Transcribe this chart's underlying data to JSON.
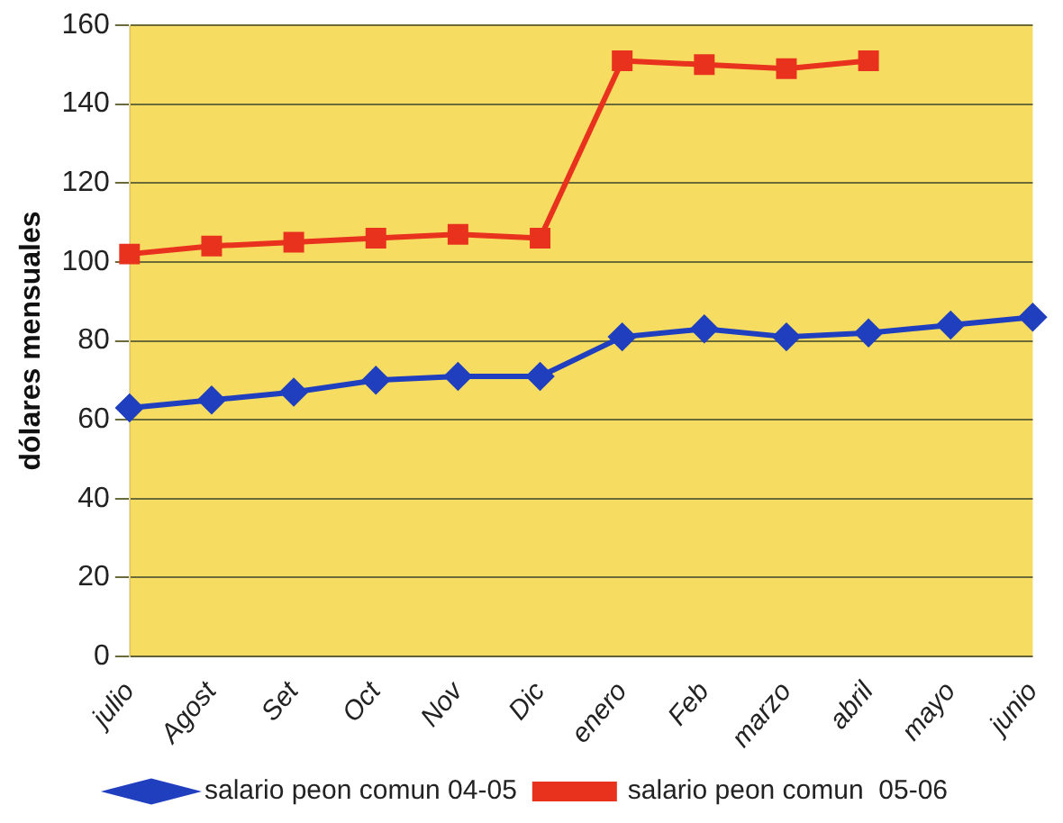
{
  "chart_data": {
    "type": "line",
    "ylabel": "dólares mensuales",
    "categories": [
      "julio",
      "Agost",
      "Set",
      "Oct",
      "Nov",
      "Dic",
      "enero",
      "Feb",
      "marzo",
      "abril",
      "mayo",
      "junio"
    ],
    "series": [
      {
        "name": "salario peon comun 04-05",
        "color": "#1f3fbf",
        "marker": "diamond",
        "values": [
          63,
          65,
          67,
          70,
          71,
          71,
          81,
          83,
          81,
          82,
          84,
          86
        ]
      },
      {
        "name": "salario peon comun  05-06",
        "color": "#e8321e",
        "marker": "square",
        "values": [
          102,
          104,
          105,
          106,
          107,
          106,
          151,
          150,
          149,
          151,
          null,
          null
        ]
      }
    ],
    "ylim": [
      0,
      160
    ],
    "yticks": [
      0,
      20,
      40,
      60,
      80,
      100,
      120,
      140,
      160
    ],
    "grid": "y",
    "legend": "bottom"
  }
}
